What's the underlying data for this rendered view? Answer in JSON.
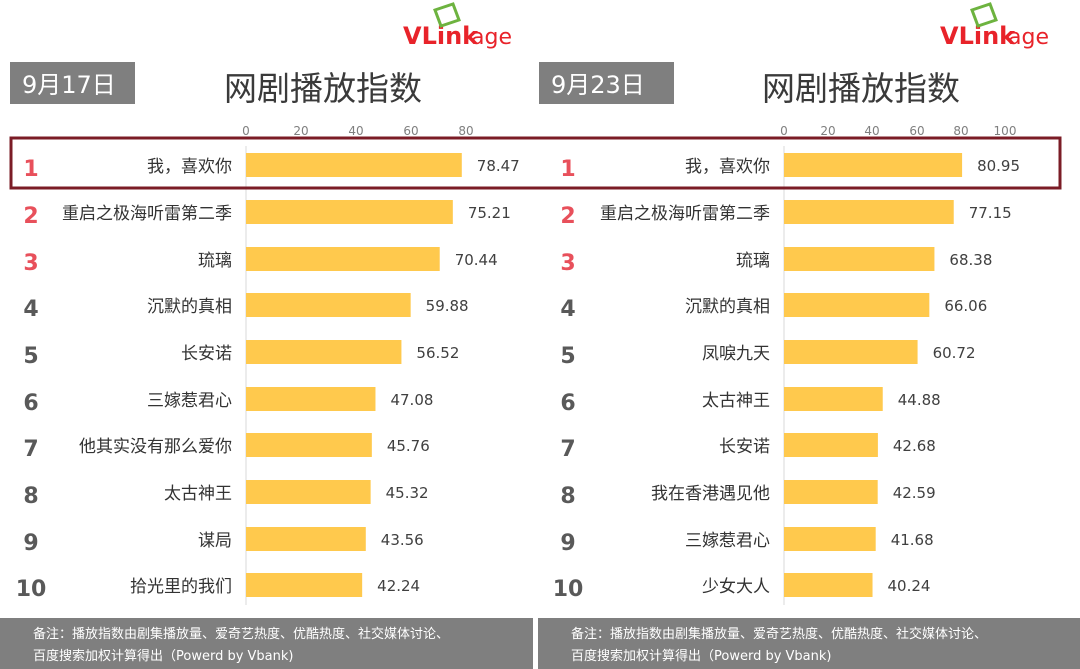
{
  "brand": {
    "logo_text_main": "VLink",
    "logo_text_tail": "age",
    "logo_color_red": "#e8232a",
    "logo_color_green": "#6db33f"
  },
  "highlight_color": "#7b1c26",
  "bar_color": "#ffc94d",
  "footer": {
    "line1": "备注：播放指数由剧集播放量、爱奇艺热度、优酷热度、社交媒体讨论、",
    "line2": "百度搜索加权计算得出（Powerd by Vbank)",
    "background": "#7f7f7f"
  },
  "chart_data": [
    {
      "type": "bar",
      "orientation": "horizontal",
      "date_label": "9月17日",
      "title": "网剧播放指数",
      "ranks": [
        "1",
        "2",
        "3",
        "4",
        "5",
        "6",
        "7",
        "8",
        "9",
        "10"
      ],
      "categories": [
        "我，喜欢你",
        "重启之极海听雷第二季",
        "琉璃",
        "沉默的真相",
        "长安诺",
        "三嫁惹君心",
        "他其实没有那么爱你",
        "太古神王",
        "谋局",
        "拾光里的我们"
      ],
      "values": [
        78.47,
        75.21,
        70.44,
        59.88,
        56.52,
        47.08,
        45.76,
        45.32,
        43.56,
        42.24
      ],
      "value_labels": [
        "78.47",
        "75.21",
        "70.44",
        "59.88",
        "56.52",
        "47.08",
        "45.76",
        "45.32",
        "43.56",
        "42.24"
      ],
      "xticks": [
        "0",
        "20",
        "40",
        "60",
        "80"
      ],
      "xlim": [
        0,
        100
      ],
      "grid": false
    },
    {
      "type": "bar",
      "orientation": "horizontal",
      "date_label": "9月23日",
      "title": "网剧播放指数",
      "ranks": [
        "1",
        "2",
        "3",
        "4",
        "5",
        "6",
        "7",
        "8",
        "9",
        "10"
      ],
      "categories": [
        "我，喜欢你",
        "重启之极海听雷第二季",
        "琉璃",
        "沉默的真相",
        "凤唳九天",
        "太古神王",
        "长安诺",
        "我在香港遇见他",
        "三嫁惹君心",
        "少女大人"
      ],
      "values": [
        80.95,
        77.15,
        68.38,
        66.06,
        60.72,
        44.88,
        42.68,
        42.59,
        41.68,
        40.24
      ],
      "value_labels": [
        "80.95",
        "77.15",
        "68.38",
        "66.06",
        "60.72",
        "44.88",
        "42.68",
        "42.59",
        "41.68",
        "40.24"
      ],
      "xticks": [
        "0",
        "20",
        "40",
        "60",
        "80",
        "100"
      ],
      "xlim": [
        0,
        100
      ],
      "grid": false
    }
  ]
}
